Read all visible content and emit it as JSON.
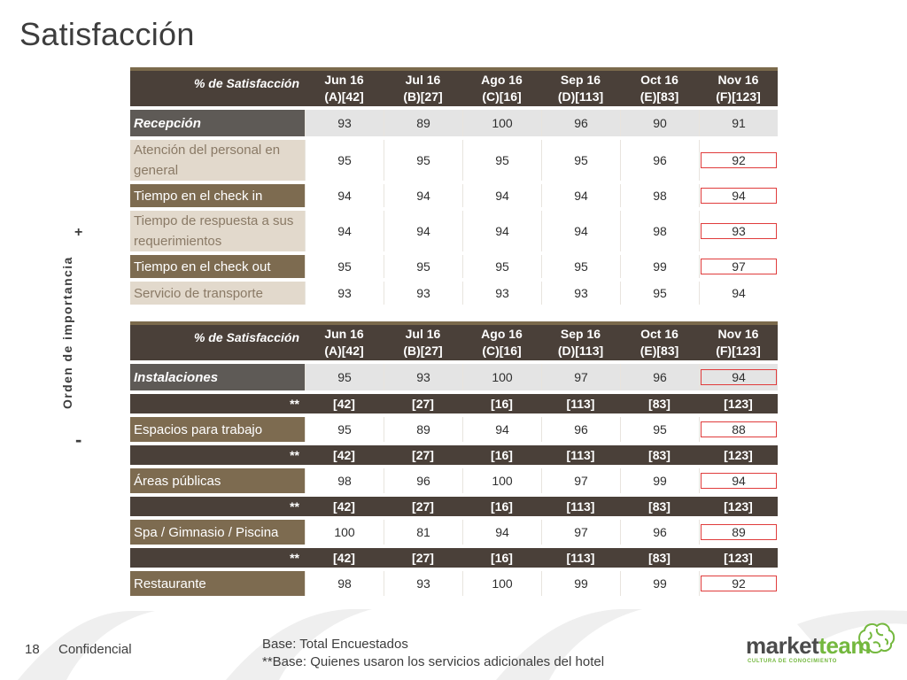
{
  "title": "Satisfacción",
  "importance_label": "Orden de importancia",
  "importance_plus": "+",
  "importance_minus": "-",
  "columns": [
    {
      "month": "Jun 16",
      "code": "(A)[42]"
    },
    {
      "month": "Jul 16",
      "code": "(B)[27]"
    },
    {
      "month": "Ago 16",
      "code": "(C)[16]"
    },
    {
      "month": "Sep 16",
      "code": "(D)[113]"
    },
    {
      "month": "Oct 16",
      "code": "(E)[83]"
    },
    {
      "month": "Nov 16",
      "code": "(F)[123]"
    }
  ],
  "table1": {
    "header_label": "% de Satisfacción",
    "rows": [
      {
        "label": "Recepción",
        "values": [
          "93",
          "89",
          "100",
          "96",
          "90",
          "91"
        ]
      },
      {
        "label": "Atención del personal en general",
        "values": [
          "95",
          "95",
          "95",
          "95",
          "96",
          "92"
        ]
      },
      {
        "label": "Tiempo en el check in",
        "values": [
          "94",
          "94",
          "94",
          "94",
          "98",
          "94"
        ]
      },
      {
        "label": "Tiempo de respuesta a sus requerimientos",
        "values": [
          "94",
          "94",
          "94",
          "94",
          "98",
          "93"
        ]
      },
      {
        "label": "Tiempo en el check out",
        "values": [
          "95",
          "95",
          "95",
          "95",
          "99",
          "97"
        ]
      },
      {
        "label": "Servicio de transporte",
        "values": [
          "93",
          "93",
          "93",
          "93",
          "95",
          "94"
        ]
      }
    ]
  },
  "table2": {
    "header_label": "% de Satisfacción",
    "rows": [
      {
        "label": "Instalaciones",
        "values": [
          "95",
          "93",
          "100",
          "97",
          "96",
          "94"
        ]
      },
      {
        "label": "**",
        "values": [
          "[42]",
          "[27]",
          "[16]",
          "[113]",
          "[83]",
          "[123]"
        ]
      },
      {
        "label": "Espacios para trabajo",
        "values": [
          "95",
          "89",
          "94",
          "96",
          "95",
          "88"
        ]
      },
      {
        "label": "**",
        "values": [
          "[42]",
          "[27]",
          "[16]",
          "[113]",
          "[83]",
          "[123]"
        ]
      },
      {
        "label": "Áreas públicas",
        "values": [
          "98",
          "96",
          "100",
          "97",
          "99",
          "94"
        ]
      },
      {
        "label": "**",
        "values": [
          "[42]",
          "[27]",
          "[16]",
          "[113]",
          "[83]",
          "[123]"
        ]
      },
      {
        "label": "Spa / Gimnasio / Piscina",
        "values": [
          "100",
          "81",
          "94",
          "97",
          "96",
          "89"
        ]
      },
      {
        "label": "**",
        "values": [
          "[42]",
          "[27]",
          "[16]",
          "[113]",
          "[83]",
          "[123]"
        ]
      },
      {
        "label": "Restaurante",
        "values": [
          "98",
          "93",
          "100",
          "99",
          "99",
          "92"
        ]
      }
    ]
  },
  "footer": {
    "page_number": "18",
    "confidential": "Confidencial",
    "base_note_1": "Base: Total Encuestados",
    "base_note_2": "**Base: Quienes usaron los servicios adicionales del hotel"
  },
  "logo": {
    "text_market": "market",
    "text_team": "team",
    "tagline": "CULTURA DE CONOCIMIENTO",
    "icon": "brain-icon",
    "colors": {
      "dark": "#4b4b4b",
      "green": "#74b83e"
    }
  },
  "colors": {
    "header_bg": "#4a4039",
    "highlight_border": "#e03c3c",
    "label_dark": "#5e5a56",
    "label_tan": "#e2d9cc",
    "label_brown": "#7d6b50"
  }
}
